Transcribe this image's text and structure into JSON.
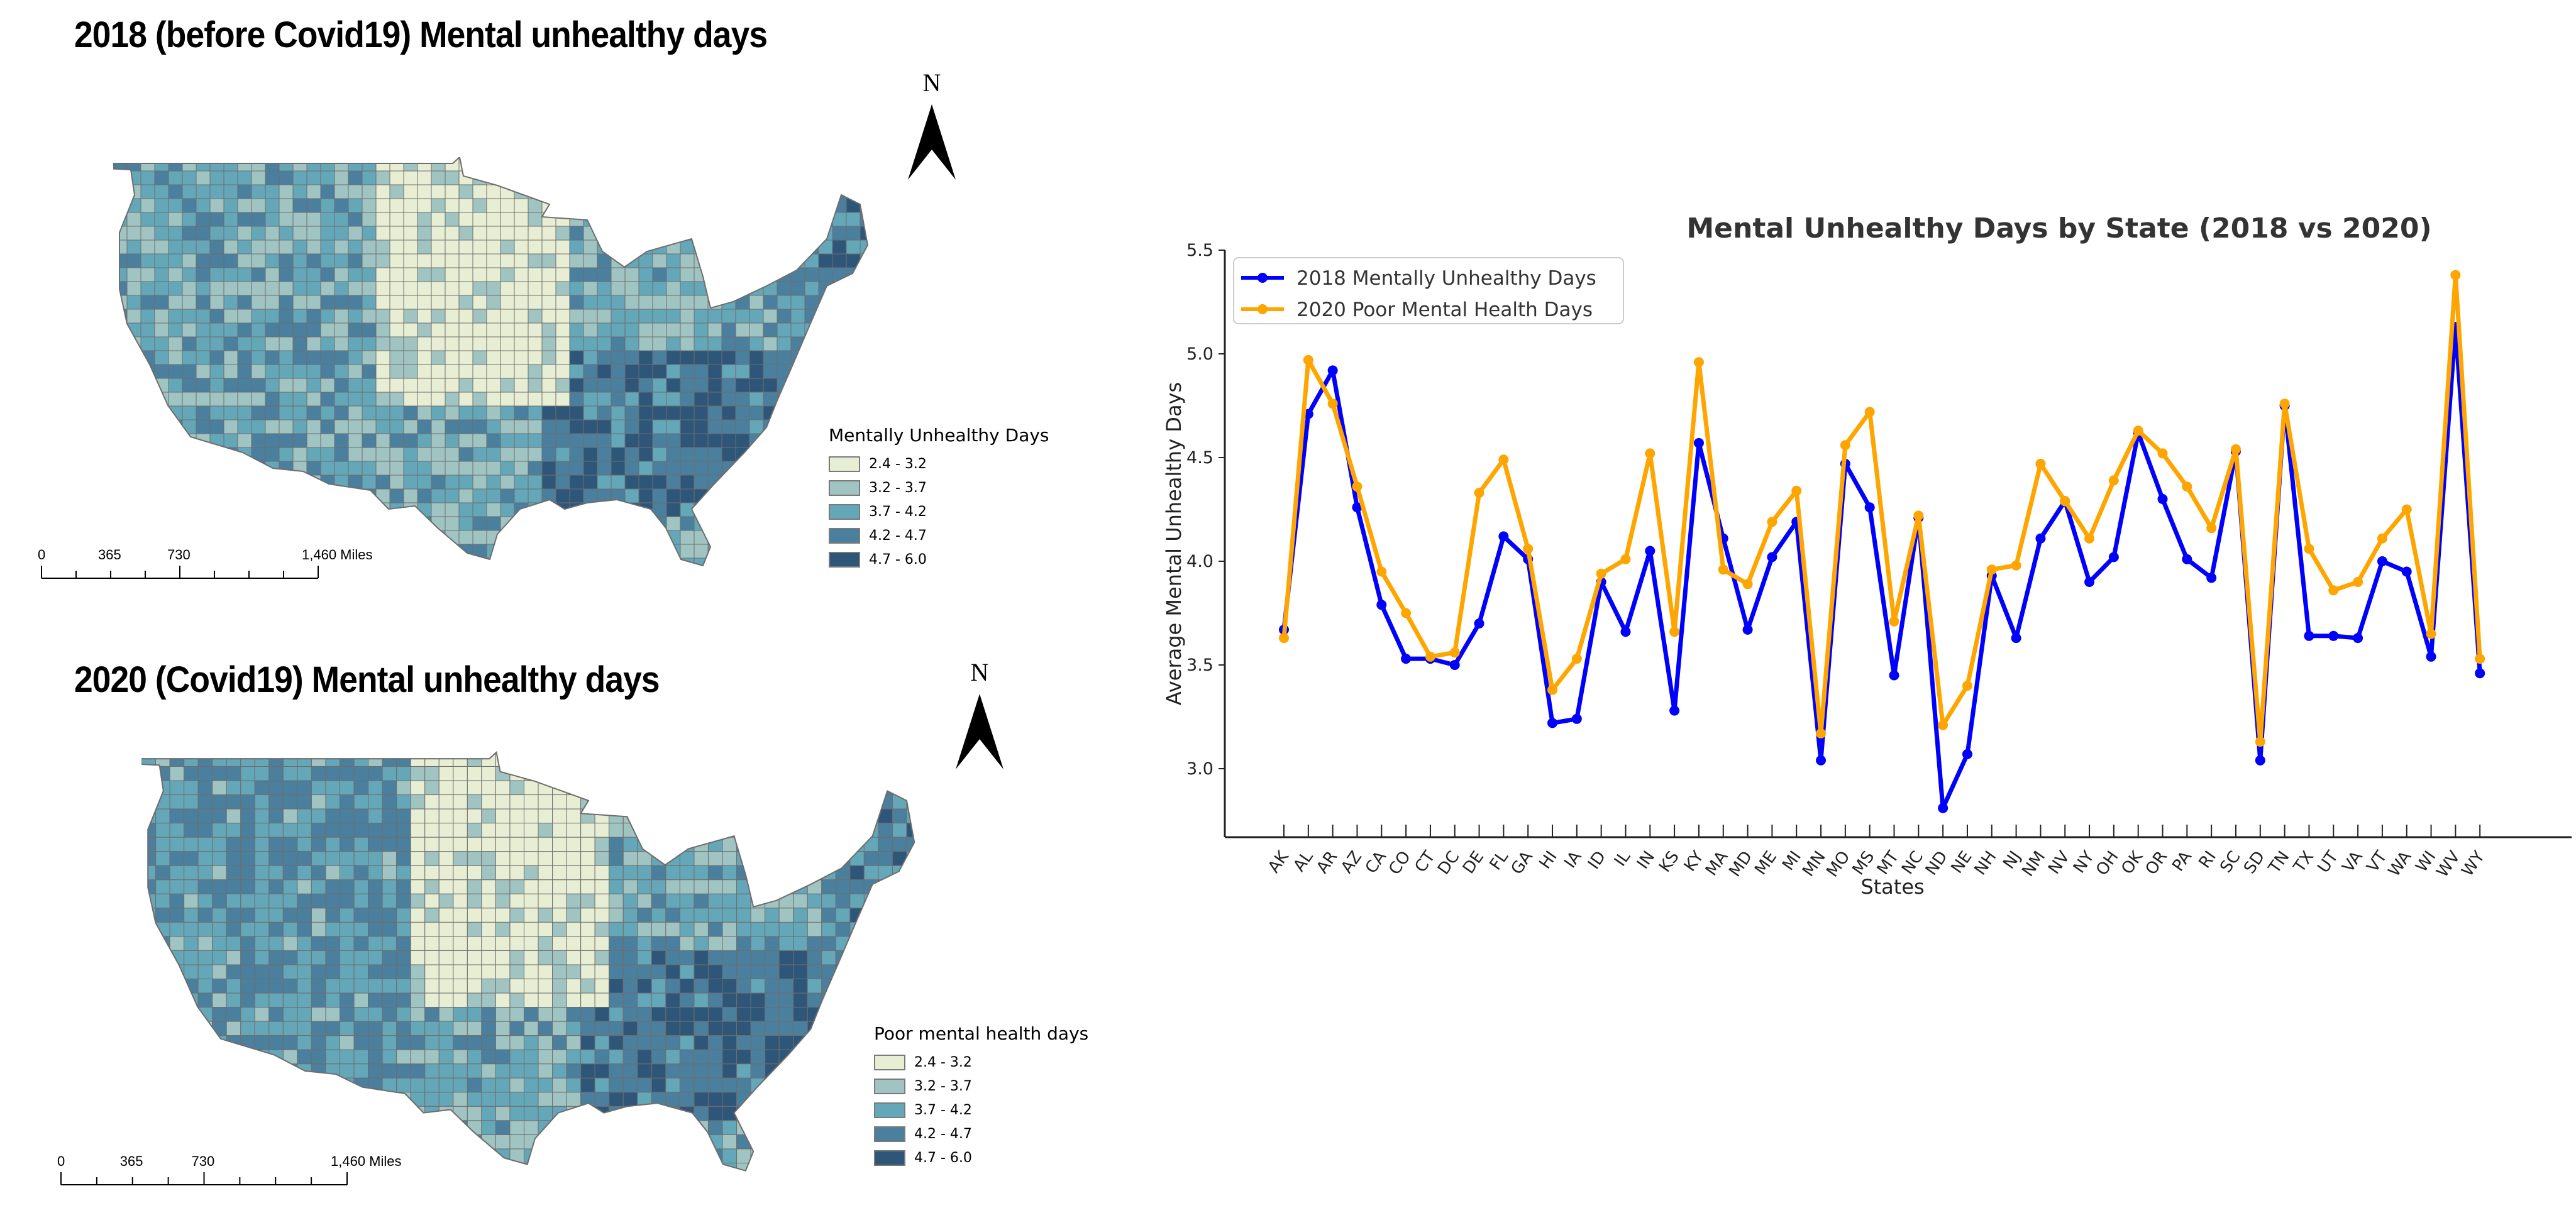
{
  "maps": [
    {
      "title": "2018 (before Covid19)  Mental unhealthy days",
      "north_label": "N",
      "legend": {
        "title": "Mentally Unhealthy Days",
        "classes": [
          {
            "label": "2.4 - 3.2",
            "color": "#e8eed3"
          },
          {
            "label": "3.2 - 3.7",
            "color": "#9fc4c2"
          },
          {
            "label": "3.7 - 4.2",
            "color": "#63a7b8"
          },
          {
            "label": "4.2 - 4.7",
            "color": "#4a7f9e"
          },
          {
            "label": "4.7 - 6.0",
            "color": "#2e5679"
          }
        ]
      },
      "scalebar": {
        "labels": [
          "0",
          "365",
          "730",
          "1,460 Miles"
        ]
      }
    },
    {
      "title": "2020 (Covid19)  Mental unhealthy days",
      "north_label": "N",
      "legend": {
        "title": "Poor mental health days",
        "classes": [
          {
            "label": "2.4 - 3.2",
            "color": "#e8eed3"
          },
          {
            "label": "3.2 - 3.7",
            "color": "#9fc4c2"
          },
          {
            "label": "3.7 - 4.2",
            "color": "#63a7b8"
          },
          {
            "label": "4.2 - 4.7",
            "color": "#4a7f9e"
          },
          {
            "label": "4.7 - 6.0",
            "color": "#2e5679"
          }
        ]
      },
      "scalebar": {
        "labels": [
          "0",
          "365",
          "730",
          "1,460 Miles"
        ]
      }
    }
  ],
  "chart_data": {
    "type": "line",
    "title": "Mental Unhealthy Days by State (2018 vs 2020)",
    "xlabel": "States",
    "ylabel": "Average Mental Unhealthy Days",
    "ylim": [
      2.7,
      5.5
    ],
    "yticks": [
      3.0,
      3.5,
      4.0,
      4.5,
      5.0,
      5.5
    ],
    "ytick_labels": [
      "3.0",
      "3.5",
      "4.0",
      "4.5",
      "5.0",
      "5.5"
    ],
    "grid": false,
    "legend_position": "top-left",
    "categories": [
      "AK",
      "AL",
      "AR",
      "AZ",
      "CA",
      "CO",
      "CT",
      "DC",
      "DE",
      "FL",
      "GA",
      "HI",
      "IA",
      "ID",
      "IL",
      "IN",
      "KS",
      "KY",
      "MA",
      "MD",
      "ME",
      "MI",
      "MN",
      "MO",
      "MS",
      "MT",
      "NC",
      "ND",
      "NE",
      "NH",
      "NJ",
      "NM",
      "NV",
      "NY",
      "OH",
      "OK",
      "OR",
      "PA",
      "RI",
      "SC",
      "SD",
      "TN",
      "TX",
      "UT",
      "VA",
      "VT",
      "WA",
      "WI",
      "WV",
      "WY"
    ],
    "series": [
      {
        "name": "2018 Mentally Unhealthy Days",
        "color": "#0000ff",
        "values": [
          3.67,
          4.71,
          4.92,
          4.26,
          3.79,
          3.53,
          3.53,
          3.5,
          3.7,
          4.12,
          4.01,
          3.22,
          3.24,
          3.9,
          3.66,
          4.05,
          3.28,
          4.57,
          4.11,
          3.67,
          4.02,
          4.19,
          3.04,
          4.47,
          4.26,
          3.45,
          4.21,
          2.81,
          3.07,
          3.93,
          3.63,
          4.11,
          4.29,
          3.9,
          4.02,
          4.62,
          4.3,
          4.01,
          3.92,
          4.53,
          3.04,
          4.75,
          3.64,
          3.64,
          3.63,
          4.0,
          3.95,
          3.54,
          5.13,
          3.46
        ]
      },
      {
        "name": "2020 Poor Mental Health Days",
        "color": "#ffa500",
        "values": [
          3.63,
          4.97,
          4.76,
          4.36,
          3.95,
          3.75,
          3.54,
          3.56,
          4.33,
          4.49,
          4.06,
          3.38,
          3.53,
          3.94,
          4.01,
          4.52,
          3.66,
          4.96,
          3.96,
          3.89,
          4.19,
          4.34,
          3.17,
          4.56,
          4.72,
          3.71,
          4.22,
          3.21,
          3.4,
          3.96,
          3.98,
          4.47,
          4.29,
          4.11,
          4.39,
          4.63,
          4.52,
          4.36,
          4.16,
          4.54,
          3.13,
          4.76,
          4.06,
          3.86,
          3.9,
          4.11,
          4.25,
          3.65,
          5.38,
          3.53
        ]
      }
    ]
  }
}
